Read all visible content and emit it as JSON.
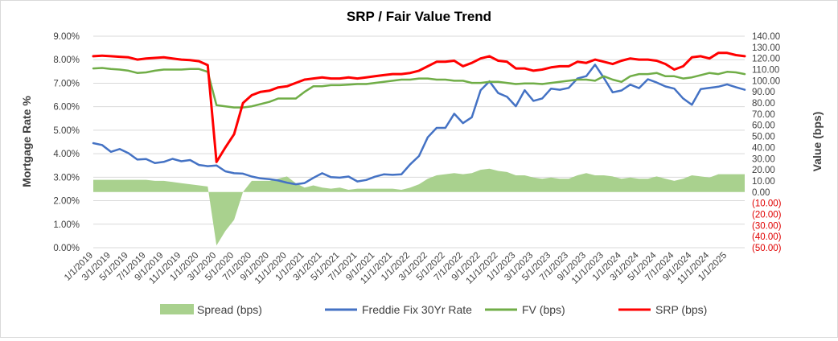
{
  "chart_data": {
    "type": "line",
    "title": "SRP / Fair Value Trend",
    "ylabel_left": "Mortgage Rate %",
    "ylabel_right": "Value (bps)",
    "ylim_left": [
      0,
      9
    ],
    "ylim_right": [
      -50,
      140
    ],
    "yticks_left": [
      "0.00%",
      "1.00%",
      "2.00%",
      "3.00%",
      "4.00%",
      "5.00%",
      "6.00%",
      "7.00%",
      "8.00%",
      "9.00%"
    ],
    "yticks_right": [
      "(50.00)",
      "(40.00)",
      "(30.00)",
      "(20.00)",
      "(10.00)",
      "0.00",
      "10.00",
      "20.00",
      "30.00",
      "40.00",
      "50.00",
      "60.00",
      "70.00",
      "80.00",
      "90.00",
      "100.00",
      "110.00",
      "120.00",
      "130.00",
      "140.00"
    ],
    "xticks": [
      "1/1/2019",
      "3/1/2019",
      "5/1/2019",
      "7/1/2019",
      "9/1/2019",
      "11/1/2019",
      "1/1/2020",
      "3/1/2020",
      "5/1/2020",
      "7/1/2020",
      "9/1/2020",
      "11/1/2020",
      "1/1/2021",
      "3/1/2021",
      "5/1/2021",
      "7/1/2021",
      "9/1/2021",
      "11/1/2021",
      "1/1/2022",
      "3/1/2022",
      "5/1/2022",
      "7/1/2022",
      "9/1/2022",
      "11/1/2022",
      "1/1/2023",
      "3/1/2023",
      "5/1/2023",
      "7/1/2023",
      "9/1/2023",
      "11/1/2023",
      "1/1/2024",
      "3/1/2024",
      "5/1/2024",
      "7/1/2024",
      "9/1/2024",
      "11/1/2024",
      "1/1/2025"
    ],
    "x": [
      "1/1/2019",
      "2/1/2019",
      "3/1/2019",
      "4/1/2019",
      "5/1/2019",
      "6/1/2019",
      "7/1/2019",
      "8/1/2019",
      "9/1/2019",
      "10/1/2019",
      "11/1/2019",
      "12/1/2019",
      "1/1/2020",
      "2/1/2020",
      "3/1/2020",
      "4/1/2020",
      "5/1/2020",
      "6/1/2020",
      "7/1/2020",
      "8/1/2020",
      "9/1/2020",
      "10/1/2020",
      "11/1/2020",
      "12/1/2020",
      "1/1/2021",
      "2/1/2021",
      "3/1/2021",
      "4/1/2021",
      "5/1/2021",
      "6/1/2021",
      "7/1/2021",
      "8/1/2021",
      "9/1/2021",
      "10/1/2021",
      "11/1/2021",
      "12/1/2021",
      "1/1/2022",
      "2/1/2022",
      "3/1/2022",
      "4/1/2022",
      "5/1/2022",
      "6/1/2022",
      "7/1/2022",
      "8/1/2022",
      "9/1/2022",
      "10/1/2022",
      "11/1/2022",
      "12/1/2022",
      "1/1/2023",
      "2/1/2023",
      "3/1/2023",
      "4/1/2023",
      "5/1/2023",
      "6/1/2023",
      "7/1/2023",
      "8/1/2023",
      "9/1/2023",
      "10/1/2023",
      "11/1/2023",
      "12/1/2023",
      "1/1/2024",
      "2/1/2024",
      "3/1/2024",
      "4/1/2024",
      "5/1/2024",
      "6/1/2024",
      "7/1/2024",
      "8/1/2024",
      "9/1/2024",
      "10/1/2024",
      "11/1/2024",
      "12/1/2024",
      "1/1/2025",
      "2/1/2025",
      "3/1/2025"
    ],
    "series": [
      {
        "name": "Spread (bps)",
        "axis": "right",
        "kind": "area",
        "color": "#a9d18e",
        "values": [
          11,
          11,
          11,
          11,
          11,
          11,
          11,
          10,
          10,
          9,
          8,
          7,
          6,
          5,
          -48,
          -35,
          -25,
          0,
          10,
          10,
          10,
          12,
          14,
          8,
          4,
          6,
          4,
          3,
          4,
          2,
          3,
          3,
          3,
          3,
          3,
          2,
          4,
          7,
          12,
          15,
          16,
          17,
          16,
          17,
          20,
          21,
          19,
          18,
          15,
          15,
          13,
          12,
          13,
          12,
          12,
          15,
          17,
          15,
          15,
          14,
          12,
          13,
          12,
          12,
          14,
          12,
          10,
          12,
          15,
          14,
          13,
          16,
          16,
          16,
          16
        ]
      },
      {
        "name": "Freddie Fix 30Yr Rate",
        "axis": "left",
        "kind": "line",
        "color": "#4472c4",
        "values": [
          4.45,
          4.37,
          4.08,
          4.2,
          4.02,
          3.75,
          3.77,
          3.6,
          3.65,
          3.78,
          3.68,
          3.73,
          3.52,
          3.47,
          3.5,
          3.25,
          3.17,
          3.15,
          3.03,
          2.95,
          2.92,
          2.86,
          2.77,
          2.7,
          2.75,
          2.97,
          3.17,
          3.0,
          2.98,
          3.03,
          2.82,
          2.88,
          3.02,
          3.12,
          3.1,
          3.12,
          3.55,
          3.9,
          4.7,
          5.1,
          5.1,
          5.7,
          5.3,
          5.55,
          6.7,
          7.08,
          6.58,
          6.42,
          6.02,
          6.7,
          6.25,
          6.35,
          6.77,
          6.72,
          6.8,
          7.2,
          7.3,
          7.79,
          7.22,
          6.61,
          6.69,
          6.94,
          6.79,
          7.17,
          7.03,
          6.86,
          6.77,
          6.35,
          6.08,
          6.75,
          6.8,
          6.85,
          6.95,
          6.83,
          6.72
        ]
      },
      {
        "name": "FV (bps)",
        "axis": "right",
        "kind": "line",
        "color": "#70ad47",
        "values": [
          111,
          111.5,
          110.5,
          110,
          109,
          107,
          107.5,
          109,
          110,
          110,
          110,
          110.5,
          110.5,
          108,
          78,
          77,
          76,
          76,
          77,
          79,
          81,
          84,
          84,
          84,
          90,
          95,
          95,
          96,
          96,
          96.5,
          97,
          97,
          98,
          99,
          100,
          101,
          101,
          102,
          102,
          101,
          101,
          100,
          100,
          98,
          98,
          99,
          99,
          98,
          97,
          97.5,
          97.5,
          97,
          98,
          99,
          100,
          101,
          101,
          100,
          104,
          101,
          99,
          104,
          106,
          106,
          107,
          104,
          104,
          102,
          103,
          105,
          107,
          106,
          108,
          107.5,
          106
        ]
      },
      {
        "name": "SRP (bps)",
        "axis": "right",
        "kind": "line",
        "color": "#ff0000",
        "values": [
          122,
          122.5,
          122,
          121.5,
          121,
          119,
          120,
          120.5,
          121,
          120,
          119,
          118.5,
          117.5,
          114,
          27,
          40,
          52,
          80,
          87,
          90,
          91,
          94,
          95,
          98,
          101,
          102,
          103,
          102,
          102,
          103,
          102,
          103,
          104,
          105,
          106,
          106,
          107,
          109,
          113,
          117,
          117,
          118,
          113,
          116,
          120,
          122,
          118,
          117,
          111,
          111,
          109,
          110,
          112,
          113,
          113,
          117,
          116,
          119,
          117,
          115,
          118,
          120,
          119,
          119,
          118,
          115,
          110,
          113,
          121,
          122,
          120,
          125,
          125,
          123,
          122
        ]
      }
    ],
    "legend_position": "bottom",
    "grid": true
  }
}
